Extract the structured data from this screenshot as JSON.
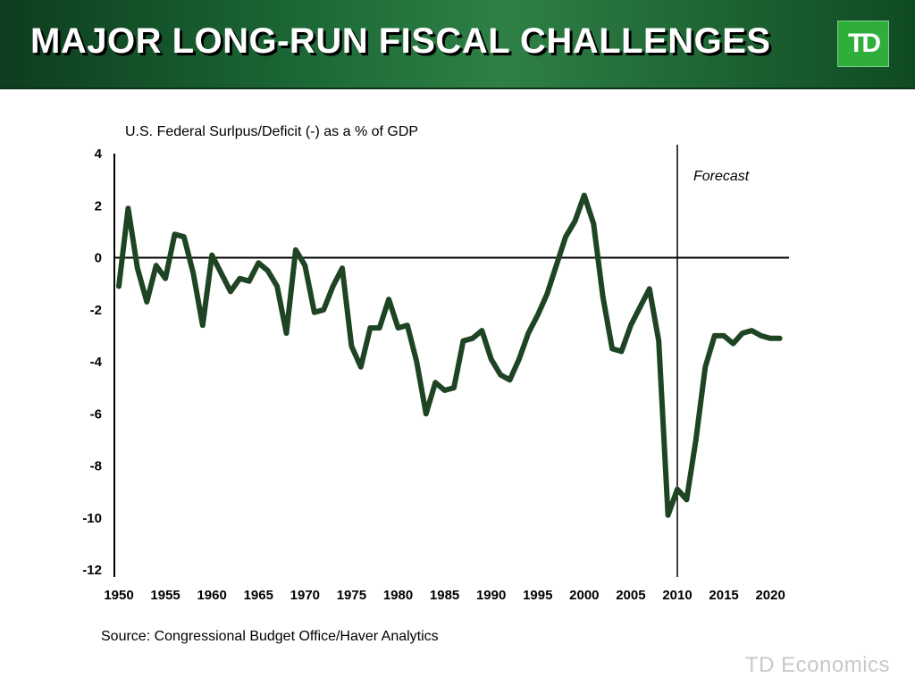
{
  "header": {
    "title": "MAJOR LONG-RUN FISCAL CHALLENGES",
    "logo_text": "TD",
    "colors": {
      "header_green": "#1d6a37",
      "logo_green": "#2fae3b"
    }
  },
  "footer": {
    "source": "Source: Congressional Budget Office/Haver Analytics",
    "brand": "TD Economics"
  },
  "chart_data": {
    "type": "line",
    "title": "U.S. Federal Surlpus/Deficit (-) as a % of GDP",
    "xlabel": "",
    "ylabel": "",
    "xlim": [
      1950,
      2022
    ],
    "ylim": [
      -12,
      4
    ],
    "x_ticks": [
      1950,
      1955,
      1960,
      1965,
      1970,
      1975,
      1980,
      1985,
      1990,
      1995,
      2000,
      2005,
      2010,
      2015,
      2020
    ],
    "y_ticks": [
      4,
      2,
      0,
      -2,
      -4,
      -6,
      -8,
      -10,
      -12
    ],
    "grid": false,
    "annotation": {
      "text": "Forecast",
      "at_x": 2010
    },
    "line_color": "#1e4424",
    "series": [
      {
        "x": [
          1950,
          1951,
          1952,
          1953,
          1954,
          1955,
          1956,
          1957,
          1958,
          1959,
          1960,
          1961,
          1962,
          1963,
          1964,
          1965,
          1966,
          1967,
          1968,
          1969,
          1970,
          1971,
          1972,
          1973,
          1974,
          1975,
          1976,
          1977,
          1978,
          1979,
          1980,
          1981,
          1982,
          1983,
          1984,
          1985,
          1986,
          1987,
          1988,
          1989,
          1990,
          1991,
          1992,
          1993,
          1994,
          1995,
          1996,
          1997,
          1998,
          1999,
          2000,
          2001,
          2002,
          2003,
          2004,
          2005,
          2006,
          2007,
          2008,
          2009,
          2010,
          2011,
          2012,
          2013,
          2014,
          2015,
          2016,
          2017,
          2018,
          2019,
          2020,
          2021
        ],
        "values": [
          -1.1,
          1.9,
          -0.4,
          -1.7,
          -0.3,
          -0.8,
          0.9,
          0.8,
          -0.6,
          -2.6,
          0.1,
          -0.6,
          -1.3,
          -0.8,
          -0.9,
          -0.2,
          -0.5,
          -1.1,
          -2.9,
          0.3,
          -0.3,
          -2.1,
          -2.0,
          -1.1,
          -0.4,
          -3.4,
          -4.2,
          -2.7,
          -2.7,
          -1.6,
          -2.7,
          -2.6,
          -4.0,
          -6.0,
          -4.8,
          -5.1,
          -5.0,
          -3.2,
          -3.1,
          -2.8,
          -3.9,
          -4.5,
          -4.7,
          -3.9,
          -2.9,
          -2.2,
          -1.4,
          -0.3,
          0.8,
          1.4,
          2.4,
          1.3,
          -1.5,
          -3.5,
          -3.6,
          -2.6,
          -1.9,
          -1.2,
          -3.2,
          -9.9,
          -8.9,
          -9.3,
          -7.0,
          -4.2,
          -3.0,
          -3.0,
          -3.3,
          -2.9,
          -2.8,
          -3.0,
          -3.1,
          -3.1
        ]
      }
    ]
  }
}
